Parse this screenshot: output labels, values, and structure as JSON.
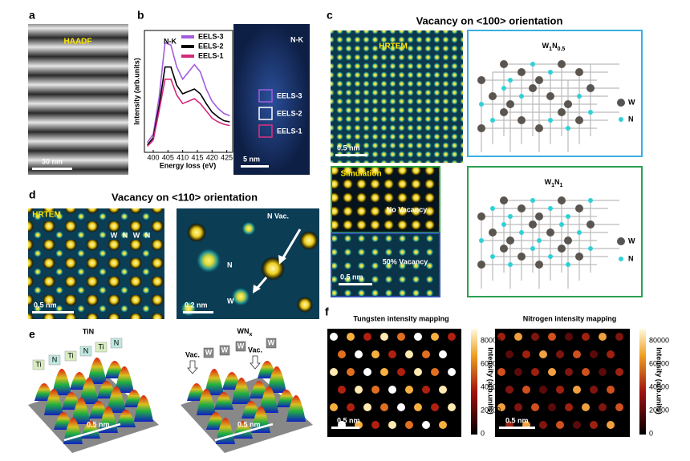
{
  "panel_a": {
    "label": "a",
    "image_label": "HAADF",
    "scale_bar": "30 nm"
  },
  "chart_data": {
    "type": "line",
    "annotation": "N-K",
    "x_label": "Energy loss (eV)",
    "y_label": "Intensity (arb.units)",
    "x": [
      398,
      400,
      402,
      404,
      406,
      408,
      410,
      412,
      414,
      416,
      418,
      420,
      422,
      424,
      426
    ],
    "xlim": [
      397,
      427
    ],
    "xticks": [
      400,
      405,
      410,
      415,
      420,
      425
    ],
    "ylim": [
      0,
      1
    ],
    "series": [
      {
        "name": "EELS-3",
        "color": "#a35ce0",
        "values": [
          0.08,
          0.15,
          0.45,
          0.9,
          0.88,
          0.7,
          0.6,
          0.66,
          0.72,
          0.66,
          0.52,
          0.42,
          0.36,
          0.32,
          0.3
        ]
      },
      {
        "name": "EELS-2",
        "color": "#000000",
        "values": [
          0.06,
          0.12,
          0.38,
          0.7,
          0.7,
          0.55,
          0.48,
          0.5,
          0.52,
          0.48,
          0.4,
          0.33,
          0.29,
          0.26,
          0.25
        ]
      },
      {
        "name": "EELS-1",
        "color": "#d6287a",
        "values": [
          0.05,
          0.1,
          0.34,
          0.6,
          0.6,
          0.47,
          0.4,
          0.42,
          0.44,
          0.4,
          0.34,
          0.28,
          0.25,
          0.23,
          0.22
        ]
      }
    ]
  },
  "panel_b": {
    "label": "b",
    "map_title": "N-K",
    "map_boxes": [
      "EELS-3",
      "EELS-2",
      "EELS-1"
    ],
    "scale_bar": "5 nm"
  },
  "panel_c": {
    "label": "c",
    "title": "Vacancy on <100> orientation",
    "hrtem": "HRTEM",
    "scale_bar_top": "0.5 nm",
    "simulation": "Simulation",
    "no_vacancy": "No Vacancy",
    "half_vacancy": "50% Vacancy",
    "scale_bar_bottom": "0.5 nm",
    "model_top": {
      "formula": [
        "W",
        "1",
        "N",
        "0.5"
      ],
      "legend": [
        "W",
        "N"
      ]
    },
    "model_bottom": {
      "formula": [
        "W",
        "1",
        "N",
        "1"
      ],
      "legend": [
        "W",
        "N"
      ]
    }
  },
  "panel_d": {
    "label": "d",
    "title": "Vacancy on <110> orientation",
    "hrtem": "HRTEM",
    "atoms": [
      "W",
      "N",
      "W",
      "N"
    ],
    "scale_bar_left": "0.5 nm",
    "vacancy": "N Vac.",
    "n_label": "N",
    "w_label": "W",
    "scale_bar_right": "0.2 nm"
  },
  "panel_e": {
    "label": "e",
    "left_title": "TiN",
    "left_atoms": [
      "Ti",
      "N",
      "Ti",
      "N",
      "Ti",
      "N"
    ],
    "left_scale": "0.5 nm",
    "right_title": [
      "WN",
      "x"
    ],
    "right_labels": [
      "Vac.",
      "W",
      "W",
      "W",
      "Vac.",
      "W"
    ],
    "right_scale": "0.5 nm"
  },
  "panel_f": {
    "label": "f",
    "tungsten_title": "Tungsten intensity mapping",
    "nitrogen_title": "Nitrogen intensity mapping",
    "colorbar_label": "Intensity (arb.units)",
    "colorbar_ticks": [
      "80000",
      "60000",
      "40000",
      "20000",
      "0"
    ],
    "scale_bar": "0.5 nm"
  }
}
